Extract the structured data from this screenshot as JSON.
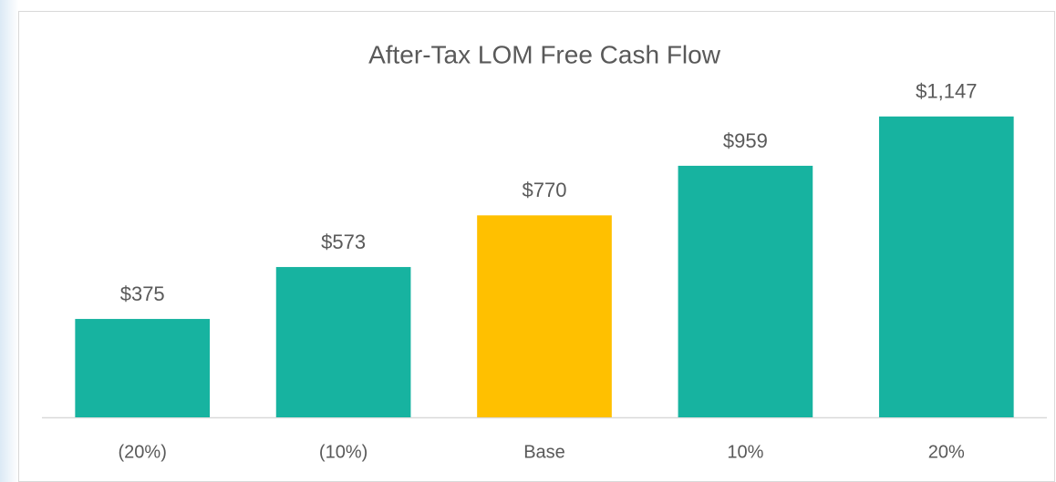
{
  "chart_data": {
    "type": "bar",
    "title": "After-Tax LOM Free Cash Flow",
    "categories": [
      "(20%)",
      "(10%)",
      "Base",
      "10%",
      "20%"
    ],
    "values": [
      375,
      573,
      770,
      959,
      1147
    ],
    "value_labels": [
      "$375",
      "$573",
      "$770",
      "$959",
      "$1,147"
    ],
    "colors": [
      "#17b3a0",
      "#17b3a0",
      "#ffc000",
      "#17b3a0",
      "#17b3a0"
    ],
    "ylim": [
      0,
      1400
    ],
    "grid": false
  }
}
